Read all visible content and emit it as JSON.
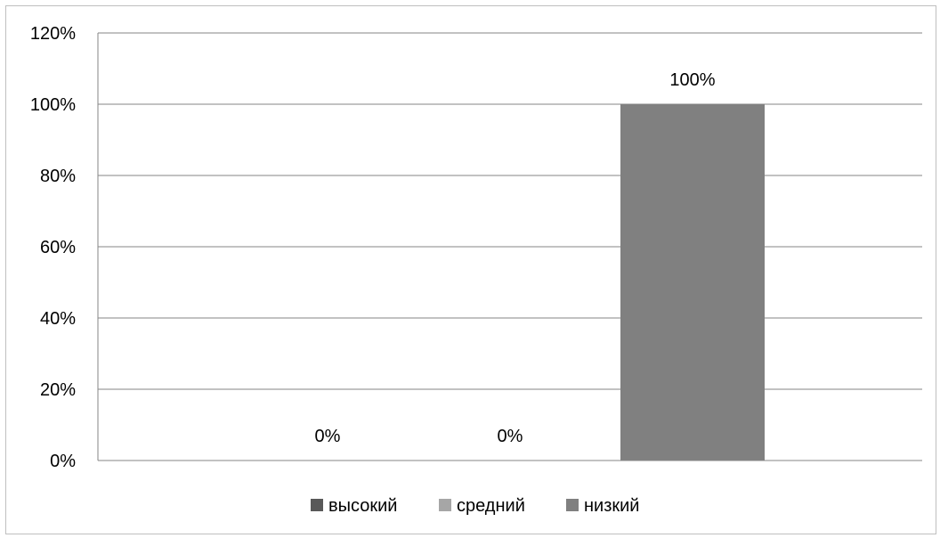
{
  "chart_data": {
    "type": "bar",
    "categories": [
      ""
    ],
    "series": [
      {
        "name": "высокий",
        "values": [
          0
        ],
        "data_labels": [
          "0%"
        ],
        "color": "#595959"
      },
      {
        "name": "средний",
        "values": [
          0
        ],
        "data_labels": [
          "0%"
        ],
        "color": "#a6a6a6"
      },
      {
        "name": "низкий",
        "values": [
          100
        ],
        "data_labels": [
          "100%"
        ],
        "color": "#808080"
      }
    ],
    "title": "",
    "xlabel": "",
    "ylabel": "",
    "ylim": [
      0,
      120
    ],
    "yticks": [
      0,
      20,
      40,
      60,
      80,
      100,
      120
    ],
    "ytick_labels": [
      "0%",
      "20%",
      "40%",
      "60%",
      "80%",
      "100%",
      "120%"
    ],
    "grid": true,
    "gridline_color": "#868686",
    "legend_position": "bottom"
  }
}
